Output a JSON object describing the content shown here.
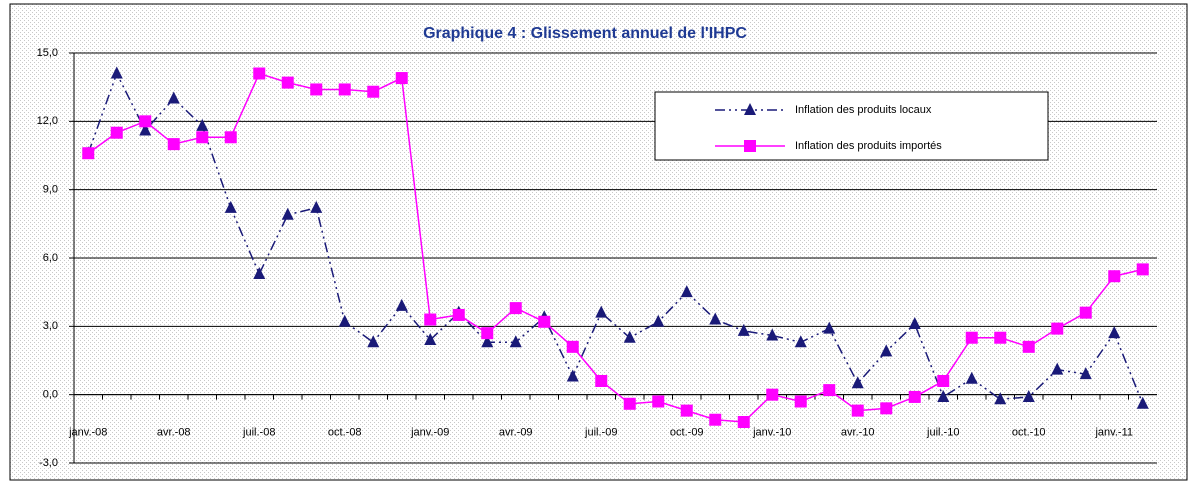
{
  "chart_data": {
    "type": "line",
    "title": "Graphique 4 : Glissement annuel de l'IHPC",
    "categories": [
      "janv.-08",
      null,
      null,
      "avr.-08",
      null,
      null,
      "juil.-08",
      null,
      null,
      "oct.-08",
      null,
      null,
      "janv.-09",
      null,
      null,
      "avr.-09",
      null,
      null,
      "juil.-09",
      null,
      null,
      "oct.-09",
      null,
      null,
      "janv.-10",
      null,
      null,
      "avr.-10",
      null,
      null,
      "juil.-10",
      null,
      null,
      "oct.-10",
      null,
      null,
      "janv.-11",
      null
    ],
    "series": [
      {
        "name": "Inflation des produits locaux",
        "color": "#1a1a78",
        "marker": "triangle",
        "dash": "dashdot",
        "values": [
          10.6,
          14.1,
          11.6,
          13.0,
          11.8,
          8.2,
          5.3,
          7.9,
          8.2,
          3.2,
          2.3,
          3.9,
          2.4,
          3.6,
          2.3,
          2.3,
          3.4,
          0.8,
          3.6,
          2.5,
          3.2,
          4.5,
          3.3,
          2.8,
          2.6,
          2.3,
          2.9,
          0.5,
          1.9,
          3.1,
          -0.1,
          0.7,
          -0.2,
          -0.1,
          1.1,
          0.9,
          2.7,
          -0.4
        ]
      },
      {
        "name": "Inflation des produits importés",
        "color": "#ff00ff",
        "marker": "square",
        "dash": "solid",
        "values": [
          10.6,
          11.5,
          12.0,
          11.0,
          11.3,
          11.3,
          14.1,
          13.7,
          13.4,
          13.4,
          13.3,
          13.9,
          3.3,
          3.5,
          2.7,
          3.8,
          3.2,
          2.1,
          0.6,
          -0.4,
          -0.3,
          -0.7,
          -1.1,
          -1.2,
          0.0,
          -0.3,
          0.2,
          -0.7,
          -0.6,
          -0.1,
          0.6,
          2.5,
          2.5,
          2.1,
          2.9,
          3.6,
          5.2,
          5.5
        ]
      }
    ],
    "ylim": [
      -3,
      15
    ],
    "yticks": [
      {
        "value": -3,
        "label": "-3,0"
      },
      {
        "value": 0,
        "label": "0,0"
      },
      {
        "value": 3,
        "label": "3,0"
      },
      {
        "value": 6,
        "label": "6,0"
      },
      {
        "value": 9,
        "label": "9,0"
      },
      {
        "value": 12,
        "label": "12,0"
      },
      {
        "value": 15,
        "label": "15,0"
      }
    ],
    "grid": true
  }
}
